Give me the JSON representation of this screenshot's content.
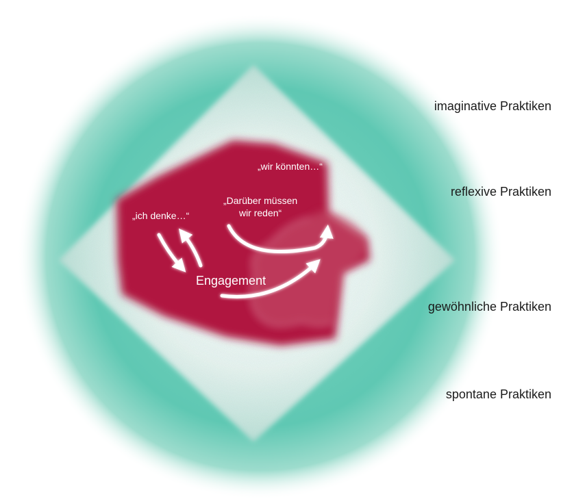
{
  "layers": [
    {
      "label": "imaginative Praktiken"
    },
    {
      "label": "reflexive Praktiken"
    },
    {
      "label": "gewöhnliche Praktiken"
    },
    {
      "label": "spontane Praktiken"
    }
  ],
  "quotes": {
    "think": "„ich denke…“",
    "could": "„wir könnten…“",
    "talk_line1": "„Darüber müssen",
    "talk_line2": "wir reden“"
  },
  "center": {
    "label": "Engagement"
  },
  "colors": {
    "teal": "#59c5b0",
    "teal_light": "#dcefe9",
    "crimson": "#b0193f",
    "crimson_soft": "#c8566f"
  }
}
